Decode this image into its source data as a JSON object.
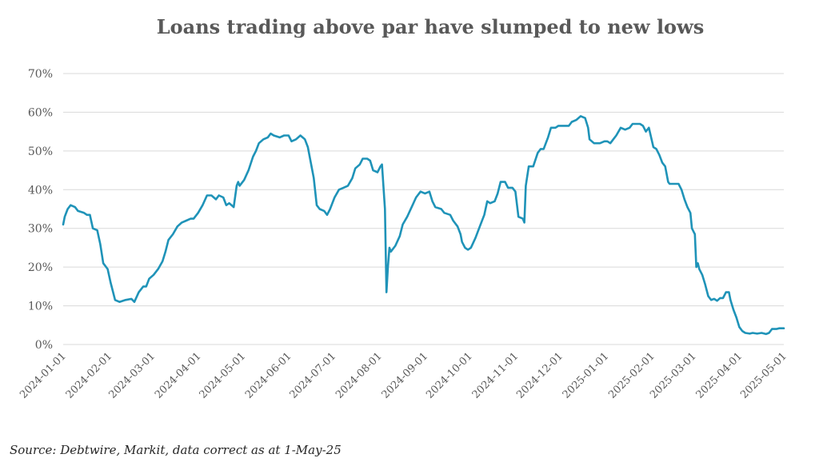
{
  "chart_data": {
    "type": "line",
    "title": "Loans trading above par have slumped to new lows",
    "source": "Source: Debtwire, Markit, data correct as at 1-May-25",
    "xlabel": "",
    "ylabel": "",
    "ylim": [
      0,
      70
    ],
    "xlim": [
      "2024-01-01",
      "2025-05-01"
    ],
    "y_ticks": [
      0,
      10,
      20,
      30,
      40,
      50,
      60,
      70
    ],
    "y_tick_labels": [
      "0%",
      "10%",
      "20%",
      "30%",
      "40%",
      "50%",
      "60%",
      "70%"
    ],
    "x_tick_labels": [
      "2024-01-01",
      "2024-02-01",
      "2024-03-01",
      "2024-04-01",
      "2024-05-01",
      "2024-06-01",
      "2024-07-01",
      "2024-08-01",
      "2024-09-01",
      "2024-10-01",
      "2024-11-01",
      "2024-12-01",
      "2025-01-01",
      "2025-02-01",
      "2025-03-01",
      "2025-04-01",
      "2025-05-01"
    ],
    "grid": true,
    "legend": "none",
    "series": [
      {
        "color": "#1f93b8",
        "points": [
          [
            "2024-01-01",
            31
          ],
          [
            "2024-01-02",
            33
          ],
          [
            "2024-01-04",
            35
          ],
          [
            "2024-01-06",
            36
          ],
          [
            "2024-01-09",
            35.5
          ],
          [
            "2024-01-11",
            34.5
          ],
          [
            "2024-01-15",
            34
          ],
          [
            "2024-01-17",
            33.5
          ],
          [
            "2024-01-19",
            33.5
          ],
          [
            "2024-01-21",
            30
          ],
          [
            "2024-01-24",
            29.5
          ],
          [
            "2024-01-26",
            26
          ],
          [
            "2024-01-28",
            21
          ],
          [
            "2024-01-31",
            19.5
          ],
          [
            "2024-02-02",
            16
          ],
          [
            "2024-02-05",
            11.5
          ],
          [
            "2024-02-08",
            11
          ],
          [
            "2024-02-12",
            11.5
          ],
          [
            "2024-02-16",
            11.8
          ],
          [
            "2024-02-18",
            11
          ],
          [
            "2024-02-21",
            13.5
          ],
          [
            "2024-02-24",
            15
          ],
          [
            "2024-02-26",
            15
          ],
          [
            "2024-02-28",
            17
          ],
          [
            "2024-03-02",
            18
          ],
          [
            "2024-03-05",
            19.5
          ],
          [
            "2024-03-08",
            21.5
          ],
          [
            "2024-03-10",
            24
          ],
          [
            "2024-03-12",
            27
          ],
          [
            "2024-03-15",
            28.5
          ],
          [
            "2024-03-18",
            30.5
          ],
          [
            "2024-03-21",
            31.5
          ],
          [
            "2024-03-24",
            32
          ],
          [
            "2024-03-27",
            32.5
          ],
          [
            "2024-03-29",
            32.5
          ],
          [
            "2024-04-01",
            34
          ],
          [
            "2024-04-04",
            36
          ],
          [
            "2024-04-07",
            38.5
          ],
          [
            "2024-04-10",
            38.5
          ],
          [
            "2024-04-13",
            37.5
          ],
          [
            "2024-04-15",
            38.5
          ],
          [
            "2024-04-18",
            38
          ],
          [
            "2024-04-20",
            36
          ],
          [
            "2024-04-22",
            36.5
          ],
          [
            "2024-04-25",
            35.5
          ],
          [
            "2024-04-27",
            41
          ],
          [
            "2024-04-28",
            42
          ],
          [
            "2024-04-29",
            41
          ],
          [
            "2024-05-02",
            42.5
          ],
          [
            "2024-05-05",
            45
          ],
          [
            "2024-05-08",
            48.5
          ],
          [
            "2024-05-10",
            50
          ],
          [
            "2024-05-12",
            52
          ],
          [
            "2024-05-15",
            53
          ],
          [
            "2024-05-18",
            53.5
          ],
          [
            "2024-05-20",
            54.5
          ],
          [
            "2024-05-22",
            54
          ],
          [
            "2024-05-26",
            53.5
          ],
          [
            "2024-05-29",
            54
          ],
          [
            "2024-06-01",
            54
          ],
          [
            "2024-06-03",
            52.5
          ],
          [
            "2024-06-06",
            53
          ],
          [
            "2024-06-09",
            54
          ],
          [
            "2024-06-12",
            53
          ],
          [
            "2024-06-14",
            51
          ],
          [
            "2024-06-16",
            47
          ],
          [
            "2024-06-18",
            43
          ],
          [
            "2024-06-20",
            36
          ],
          [
            "2024-06-22",
            35
          ],
          [
            "2024-06-25",
            34.5
          ],
          [
            "2024-06-27",
            33.5
          ],
          [
            "2024-06-29",
            35
          ],
          [
            "2024-07-02",
            38
          ],
          [
            "2024-07-05",
            40
          ],
          [
            "2024-07-08",
            40.5
          ],
          [
            "2024-07-11",
            41
          ],
          [
            "2024-07-14",
            43
          ],
          [
            "2024-07-16",
            45.5
          ],
          [
            "2024-07-19",
            46.5
          ],
          [
            "2024-07-21",
            48
          ],
          [
            "2024-07-24",
            48
          ],
          [
            "2024-07-26",
            47.5
          ],
          [
            "2024-07-28",
            45
          ],
          [
            "2024-07-31",
            44.5
          ],
          [
            "2024-08-02",
            46
          ],
          [
            "2024-08-03",
            46.5
          ],
          [
            "2024-08-05",
            35
          ],
          [
            "2024-08-06",
            13.5
          ],
          [
            "2024-08-07",
            20
          ],
          [
            "2024-08-08",
            25
          ],
          [
            "2024-08-09",
            24
          ],
          [
            "2024-08-12",
            25.5
          ],
          [
            "2024-08-15",
            28
          ],
          [
            "2024-08-17",
            31
          ],
          [
            "2024-08-20",
            33
          ],
          [
            "2024-08-23",
            35.5
          ],
          [
            "2024-08-26",
            38
          ],
          [
            "2024-08-29",
            39.5
          ],
          [
            "2024-09-01",
            39
          ],
          [
            "2024-09-04",
            39.5
          ],
          [
            "2024-09-06",
            37
          ],
          [
            "2024-09-08",
            35.5
          ],
          [
            "2024-09-12",
            35
          ],
          [
            "2024-09-14",
            34
          ],
          [
            "2024-09-18",
            33.5
          ],
          [
            "2024-09-20",
            32
          ],
          [
            "2024-09-23",
            30.5
          ],
          [
            "2024-09-25",
            28.5
          ],
          [
            "2024-09-26",
            26.5
          ],
          [
            "2024-09-28",
            25
          ],
          [
            "2024-09-30",
            24.5
          ],
          [
            "2024-10-02",
            25
          ],
          [
            "2024-10-05",
            27.5
          ],
          [
            "2024-10-08",
            30.5
          ],
          [
            "2024-10-11",
            33.5
          ],
          [
            "2024-10-13",
            37
          ],
          [
            "2024-10-15",
            36.5
          ],
          [
            "2024-10-18",
            37
          ],
          [
            "2024-10-20",
            39
          ],
          [
            "2024-10-22",
            42
          ],
          [
            "2024-10-25",
            42
          ],
          [
            "2024-10-27",
            40.5
          ],
          [
            "2024-10-30",
            40.5
          ],
          [
            "2024-11-01",
            39.5
          ],
          [
            "2024-11-03",
            33
          ],
          [
            "2024-11-06",
            32.5
          ],
          [
            "2024-11-07",
            31.5
          ],
          [
            "2024-11-08",
            41
          ],
          [
            "2024-11-10",
            46
          ],
          [
            "2024-11-13",
            46
          ],
          [
            "2024-11-16",
            49.5
          ],
          [
            "2024-11-18",
            50.5
          ],
          [
            "2024-11-20",
            50.5
          ],
          [
            "2024-11-23",
            53.5
          ],
          [
            "2024-11-25",
            56
          ],
          [
            "2024-11-28",
            56
          ],
          [
            "2024-11-30",
            56.5
          ],
          [
            "2024-12-04",
            56.5
          ],
          [
            "2024-12-07",
            56.5
          ],
          [
            "2024-12-09",
            57.5
          ],
          [
            "2024-12-12",
            58
          ],
          [
            "2024-12-15",
            59
          ],
          [
            "2024-12-18",
            58.5
          ],
          [
            "2024-12-20",
            56
          ],
          [
            "2024-12-21",
            53
          ],
          [
            "2024-12-24",
            52
          ],
          [
            "2024-12-28",
            52
          ],
          [
            "2024-12-31",
            52.5
          ],
          [
            "2025-01-02",
            52.5
          ],
          [
            "2025-01-04",
            52
          ],
          [
            "2025-01-06",
            53
          ],
          [
            "2025-01-08",
            54
          ],
          [
            "2025-01-11",
            56
          ],
          [
            "2025-01-14",
            55.5
          ],
          [
            "2025-01-17",
            56
          ],
          [
            "2025-01-19",
            57
          ],
          [
            "2025-01-22",
            57
          ],
          [
            "2025-01-24",
            57
          ],
          [
            "2025-01-26",
            56.5
          ],
          [
            "2025-01-28",
            55
          ],
          [
            "2025-01-30",
            56
          ],
          [
            "2025-02-02",
            51
          ],
          [
            "2025-02-04",
            50.5
          ],
          [
            "2025-02-06",
            49
          ],
          [
            "2025-02-08",
            47
          ],
          [
            "2025-02-10",
            46
          ],
          [
            "2025-02-12",
            42
          ],
          [
            "2025-02-13",
            41.5
          ],
          [
            "2025-02-16",
            41.5
          ],
          [
            "2025-02-19",
            41.5
          ],
          [
            "2025-02-21",
            40
          ],
          [
            "2025-02-23",
            37.5
          ],
          [
            "2025-02-25",
            35.5
          ],
          [
            "2025-02-27",
            34
          ],
          [
            "2025-02-28",
            30
          ],
          [
            "2025-03-02",
            28.5
          ],
          [
            "2025-03-03",
            20
          ],
          [
            "2025-03-04",
            21
          ],
          [
            "2025-03-05",
            19.5
          ],
          [
            "2025-03-07",
            18
          ],
          [
            "2025-03-09",
            15.5
          ],
          [
            "2025-03-11",
            12.5
          ],
          [
            "2025-03-13",
            11.5
          ],
          [
            "2025-03-15",
            11.8
          ],
          [
            "2025-03-17",
            11.3
          ],
          [
            "2025-03-19",
            12
          ],
          [
            "2025-03-21",
            12
          ],
          [
            "2025-03-23",
            13.5
          ],
          [
            "2025-03-25",
            13.5
          ],
          [
            "2025-03-26",
            11.5
          ],
          [
            "2025-03-28",
            9
          ],
          [
            "2025-03-30",
            7
          ],
          [
            "2025-04-01",
            4.5
          ],
          [
            "2025-04-03",
            3.5
          ],
          [
            "2025-04-05",
            3
          ],
          [
            "2025-04-08",
            2.8
          ],
          [
            "2025-04-10",
            3
          ],
          [
            "2025-04-13",
            2.8
          ],
          [
            "2025-04-16",
            3
          ],
          [
            "2025-04-19",
            2.7
          ],
          [
            "2025-04-21",
            3
          ],
          [
            "2025-04-23",
            4
          ],
          [
            "2025-04-26",
            4
          ],
          [
            "2025-04-28",
            4.2
          ],
          [
            "2025-05-01",
            4.2
          ]
        ]
      }
    ]
  }
}
